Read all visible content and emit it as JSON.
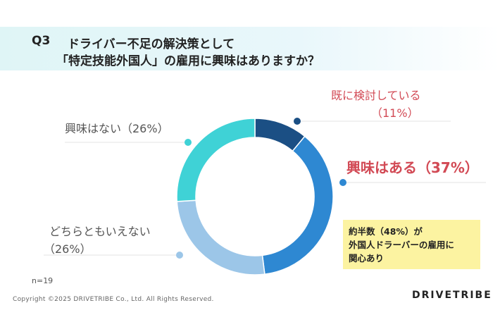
{
  "header": {
    "q_number": "Q3",
    "title_line1": "ドライバー不足の解決策として",
    "title_line2": "「特定技能外国人」の雇用に興味はありますか？"
  },
  "chart_data": {
    "type": "pie",
    "variant": "donut",
    "categories": [
      "既に検討している",
      "興味はある",
      "どちらともいえない",
      "興味はない"
    ],
    "values": [
      11,
      37,
      26,
      26
    ],
    "unit": "%",
    "colors": [
      "#1b4f84",
      "#2e88d2",
      "#9cc6e8",
      "#3fd2d6"
    ],
    "labels": {
      "considering_name": "既に検討している",
      "considering_pct": "（11%）",
      "interested": "興味はある（37%）",
      "neutral_name": "どちらともいえない",
      "neutral_pct": "（26%）",
      "not_interested": "興味はない（26%）"
    }
  },
  "callout": {
    "line1": "約半数（48%）が",
    "line2": "外国人ドラーバーの雇用に",
    "line3": "関心あり"
  },
  "footer": {
    "sample": "n=19",
    "copyright": "Copyright ©2025 DRIVETRIBE Co., Ltd. All Rights Reserved.",
    "logo": "DRIVETRIBE"
  },
  "colors": {
    "accent_red": "#d24a55",
    "callout_bg": "#fcf3a1",
    "header_bg": "#dff5f6"
  }
}
